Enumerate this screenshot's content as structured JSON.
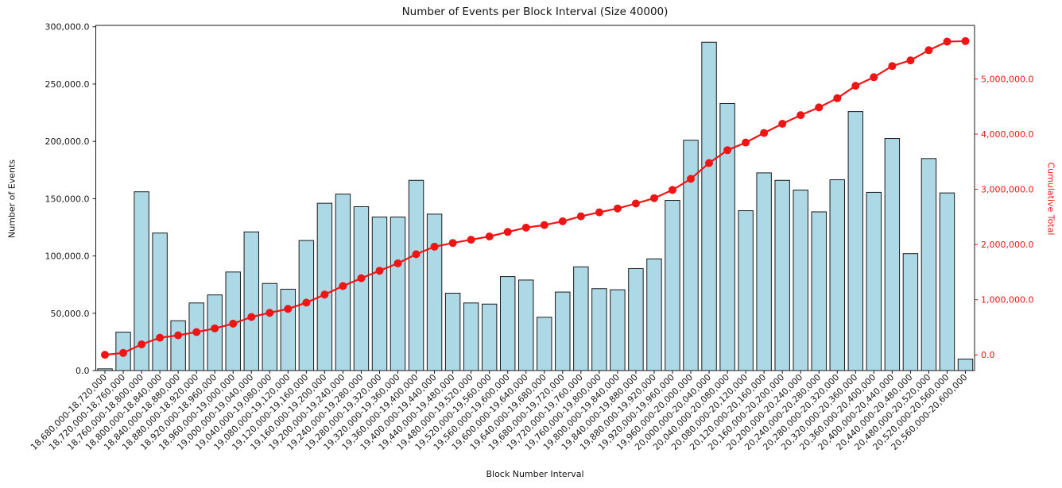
{
  "chart_data": {
    "type": "bar",
    "title": "Number of Events per Block Interval (Size 40000)",
    "xlabel": "Block Number Interval",
    "ylabel": "Number of Events",
    "ylabel_right": "Cumulative Total",
    "grid": false,
    "legend": null,
    "bar_width_fraction": 0.8,
    "categories": [
      "18,680,000-18,720,000",
      "18,720,000-18,760,000",
      "18,760,000-18,800,000",
      "18,800,000-18,840,000",
      "18,840,000-18,880,000",
      "18,880,000-18,920,000",
      "18,920,000-18,960,000",
      "18,960,000-19,000,000",
      "19,000,000-19,040,000",
      "19,040,000-19,080,000",
      "19,080,000-19,120,000",
      "19,120,000-19,160,000",
      "19,160,000-19,200,000",
      "19,200,000-19,240,000",
      "19,240,000-19,280,000",
      "19,280,000-19,320,000",
      "19,320,000-19,360,000",
      "19,360,000-19,400,000",
      "19,400,000-19,440,000",
      "19,440,000-19,480,000",
      "19,480,000-19,520,000",
      "19,520,000-19,560,000",
      "19,560,000-19,600,000",
      "19,600,000-19,640,000",
      "19,640,000-19,680,000",
      "19,680,000-19,720,000",
      "19,720,000-19,760,000",
      "19,760,000-19,800,000",
      "19,800,000-19,840,000",
      "19,840,000-19,880,000",
      "19,880,000-19,920,000",
      "19,920,000-19,960,000",
      "19,960,000-20,000,000",
      "20,000,000-20,040,000",
      "20,040,000-20,080,000",
      "20,080,000-20,120,000",
      "20,120,000-20,160,000",
      "20,160,000-20,200,000",
      "20,200,000-20,240,000",
      "20,240,000-20,280,000",
      "20,280,000-20,320,000",
      "20,320,000-20,360,000",
      "20,360,000-20,400,000",
      "20,400,000-20,440,000",
      "20,440,000-20,480,000",
      "20,480,000-20,520,000",
      "20,520,000-20,560,000",
      "20,560,000-20,600,000"
    ],
    "series": [
      {
        "name": "Number of Events",
        "type": "bar",
        "axis": "left",
        "color": "#add8e6",
        "edge_color": "#1a1a1a",
        "values": [
          1500,
          33500,
          156000,
          120000,
          43500,
          59000,
          66000,
          86000,
          121000,
          76000,
          71000,
          113500,
          146000,
          154000,
          143000,
          134000,
          134000,
          166000,
          136500,
          67500,
          59000,
          58000,
          82000,
          79000,
          46500,
          68500,
          90500,
          71500,
          70500,
          89000,
          97500,
          148500,
          201000,
          286500,
          233000,
          139500,
          172500,
          166000,
          157500,
          138500,
          166500,
          226000,
          155500,
          202500,
          102000,
          185000,
          155000,
          10000
        ]
      },
      {
        "name": "Cumulative Total",
        "type": "line",
        "axis": "right",
        "color": "#f01515",
        "marker": "circle",
        "values": [
          1500,
          35000,
          191000,
          311000,
          354500,
          413500,
          479500,
          565500,
          686500,
          762500,
          833500,
          947000,
          1093000,
          1247000,
          1390000,
          1524000,
          1658000,
          1824000,
          1960500,
          2028000,
          2087000,
          2145000,
          2227000,
          2306000,
          2352500,
          2421000,
          2511500,
          2583000,
          2653500,
          2742500,
          2840000,
          2988500,
          3189500,
          3476000,
          3709000,
          3848500,
          4021000,
          4187000,
          4344500,
          4483000,
          4649500,
          4875500,
          5031000,
          5233500,
          5335500,
          5520500,
          5675500,
          5685500
        ]
      }
    ],
    "left_axis": {
      "color": "#1a1a1a",
      "range": [
        0,
        301200
      ],
      "tick_values": [
        0,
        50000,
        100000,
        150000,
        200000,
        250000,
        300000
      ],
      "tick_labels": [
        "0.0",
        "50,000.0",
        "100,000.0",
        "150,000.0",
        "200,000.0",
        "250,000.0",
        "300,000.0"
      ]
    },
    "right_axis": {
      "color": "#f01515",
      "range": [
        -284000,
        5970000
      ],
      "tick_values": [
        0,
        1000000,
        2000000,
        3000000,
        4000000,
        5000000
      ],
      "tick_labels": [
        "0.0",
        "1,000,000.0",
        "2,000,000.0",
        "3,000,000.0",
        "4,000,000.0",
        "5,000,000.0"
      ]
    }
  }
}
